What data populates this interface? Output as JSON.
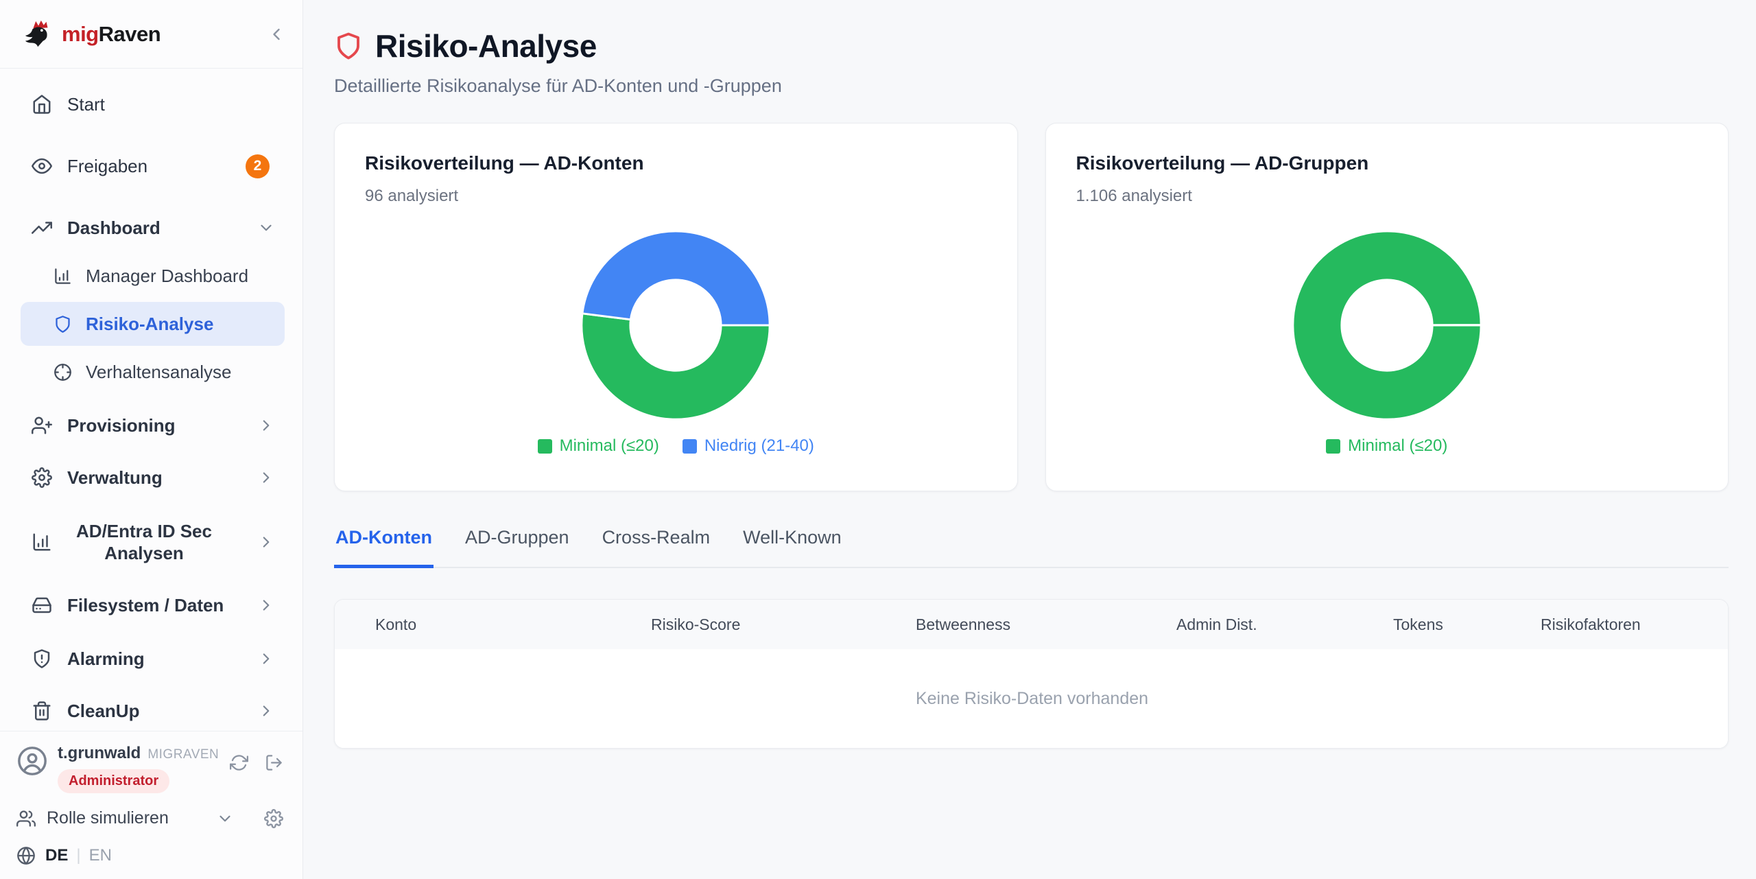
{
  "app": {
    "brand": {
      "mig": "mig",
      "raven": "Raven"
    }
  },
  "sidebar": {
    "items": [
      {
        "label": "Start",
        "icon": "home-icon"
      },
      {
        "label": "Freigaben",
        "icon": "eye-icon",
        "badge": "2"
      },
      {
        "label": "Dashboard",
        "icon": "trending-up-icon",
        "chevron": "down"
      },
      {
        "label": "Manager Dashboard",
        "icon": "chart-column-icon",
        "sub": true
      },
      {
        "label": "Risiko-Analyse",
        "icon": "shield-icon",
        "sub": true,
        "active": true
      },
      {
        "label": "Verhaltensanalyse",
        "icon": "crosshair-icon",
        "sub": true
      },
      {
        "label": "Provisioning",
        "icon": "user-plus-icon",
        "chevron": "right"
      },
      {
        "label": "Verwaltung",
        "icon": "gear-icon",
        "chevron": "right"
      },
      {
        "label": "AD/Entra ID Sec Analysen",
        "icon": "chart-column-icon",
        "chevron": "right"
      },
      {
        "label": "Filesystem / Daten",
        "icon": "hard-drive-icon",
        "chevron": "right"
      },
      {
        "label": "Alarming",
        "icon": "shield-alert-icon",
        "chevron": "right"
      },
      {
        "label": "CleanUp",
        "icon": "trash-icon",
        "chevron": "right"
      }
    ],
    "user": {
      "name": "t.grunwald",
      "org": "MIGRAVEN",
      "role": "Administrator"
    },
    "role_sim": {
      "label": "Rolle simulieren"
    },
    "lang": {
      "de": "DE",
      "separator": "|",
      "en": "EN"
    }
  },
  "header": {
    "title": "Risiko-Analyse",
    "subtitle": "Detaillierte Risikoanalyse für AD-Konten und -Gruppen"
  },
  "cards": [
    {
      "title": "Risikoverteilung — AD-Konten",
      "analyzed": "96 analysiert"
    },
    {
      "title": "Risikoverteilung — AD-Gruppen",
      "analyzed": "1.106 analysiert"
    }
  ],
  "tabs": [
    {
      "label": "AD-Konten",
      "active": true
    },
    {
      "label": "AD-Gruppen",
      "active": false
    },
    {
      "label": "Cross-Realm",
      "active": false
    },
    {
      "label": "Well-Known",
      "active": false
    }
  ],
  "table": {
    "columns": [
      "Konto",
      "Risiko-Score",
      "Betweenness",
      "Admin Dist.",
      "Tokens",
      "Risikofaktoren"
    ],
    "empty_text": "Keine Risiko-Daten vorhanden"
  },
  "chart_data": [
    {
      "type": "pie",
      "variant": "donut",
      "title": "Risikoverteilung — AD-Konten",
      "subtitle": "96 analysiert",
      "total_analyzed": 96,
      "start_angle_deg": 0,
      "direction": "clockwise",
      "legend_position": "bottom",
      "segments": [
        {
          "label": "Minimal (≤20)",
          "pct": 52,
          "est_count": 50,
          "color": "#25ba5e"
        },
        {
          "label": "Niedrig (21-40)",
          "pct": 48,
          "est_count": 46,
          "color": "#4285f4"
        }
      ]
    },
    {
      "type": "pie",
      "variant": "donut",
      "title": "Risikoverteilung — AD-Gruppen",
      "subtitle": "1.106 analysiert",
      "total_analyzed": 1106,
      "start_angle_deg": 0,
      "direction": "clockwise",
      "legend_position": "bottom",
      "segments": [
        {
          "label": "Minimal (≤20)",
          "pct": 100,
          "est_count": 1106,
          "color": "#25ba5e"
        }
      ]
    }
  ],
  "colors": {
    "accent_blue": "#2563eb",
    "sidebar_active_blue": "#2e62d9",
    "sidebar_active_bg": "#e4ebfb",
    "badge_orange": "#f4750f",
    "role_pill_bg": "#fde8e8",
    "role_pill_text": "#c21f2e",
    "header_shield_red": "#e5484d",
    "donut_green": "#25ba5e",
    "donut_blue": "#4285f4"
  }
}
